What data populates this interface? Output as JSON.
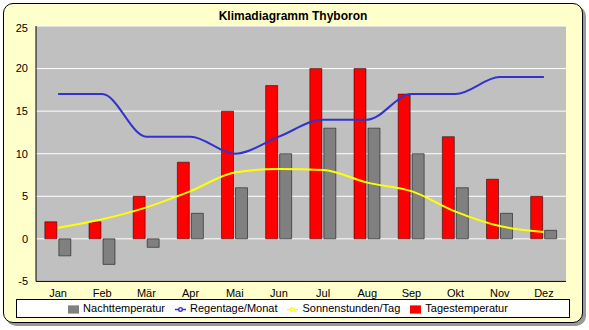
{
  "chart_data": {
    "type": "bar",
    "title": "Klimadiagramm Thyboron",
    "categories": [
      "Jan",
      "Feb",
      "Mär",
      "Apr",
      "Mai",
      "Jun",
      "Jul",
      "Aug",
      "Sep",
      "Okt",
      "Nov",
      "Dez"
    ],
    "series": [
      {
        "name": "Tagestemperatur",
        "type": "bar",
        "color": "#ff0000",
        "values": [
          2,
          2,
          5,
          9,
          15,
          18,
          20,
          20,
          17,
          12,
          7,
          5
        ]
      },
      {
        "name": "Nachttemperatur",
        "type": "bar",
        "color": "#808080",
        "values": [
          -2,
          -3,
          -1,
          3,
          6,
          10,
          13,
          13,
          10,
          6,
          3,
          1
        ]
      },
      {
        "name": "Sonnenstunden/Tag",
        "type": "line",
        "color": "#ffff00",
        "marker": "none",
        "values": [
          1.3,
          2.3,
          3.7,
          5.6,
          7.8,
          8.2,
          8.1,
          6.6,
          5.6,
          3.2,
          1.5,
          0.8
        ]
      },
      {
        "name": "Regentage/Monat",
        "type": "line",
        "color": "#3333cc",
        "marker": "none",
        "values": [
          17,
          17,
          12,
          12,
          10,
          12,
          14,
          14,
          17,
          17,
          19,
          19
        ]
      }
    ],
    "ylim": [
      -5,
      25
    ],
    "yticks": [
      -5,
      0,
      5,
      10,
      15,
      20,
      25
    ],
    "grid": true,
    "legend": "bottom"
  }
}
